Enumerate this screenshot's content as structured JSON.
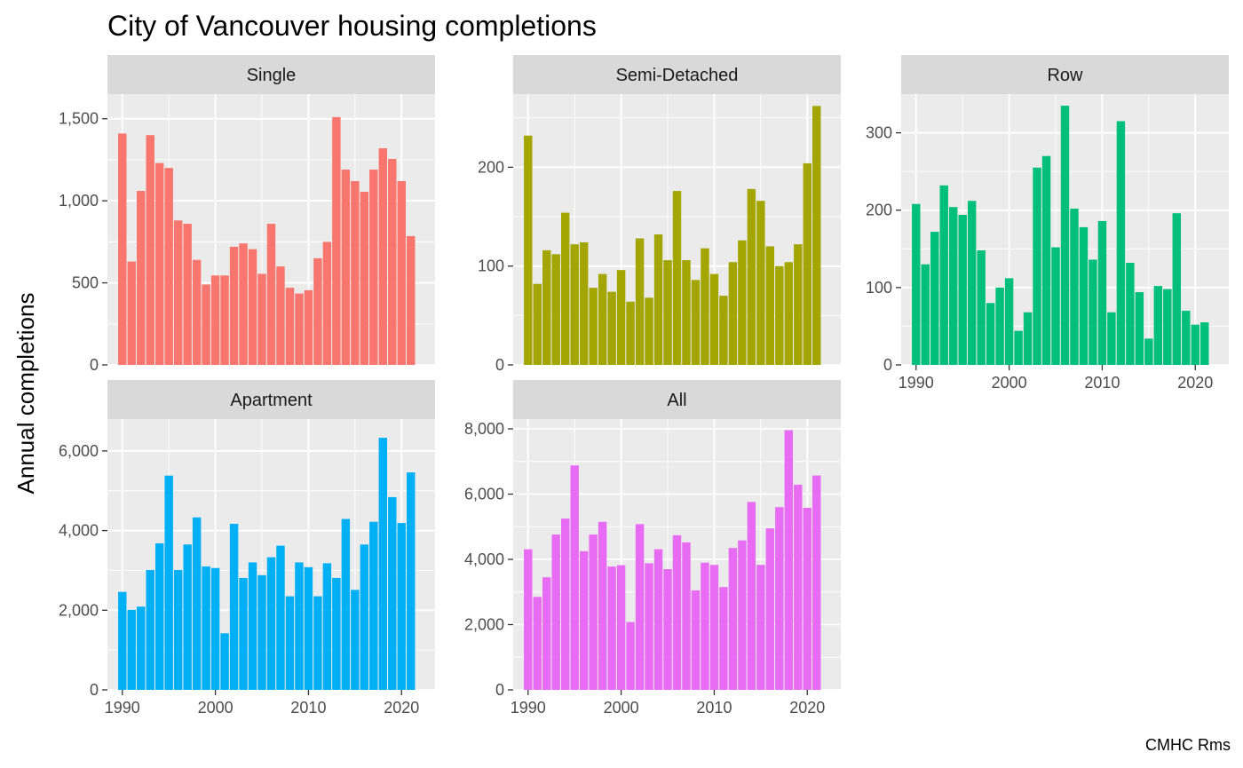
{
  "chart_data": {
    "type": "bar",
    "title": "City of Vancouver housing completions",
    "ylabel": "Annual completions",
    "caption": "CMHC Rms",
    "x_ticks": [
      1990,
      2000,
      2010,
      2020
    ],
    "years": [
      1990,
      1991,
      1992,
      1993,
      1994,
      1995,
      1996,
      1997,
      1998,
      1999,
      2000,
      2001,
      2002,
      2003,
      2004,
      2005,
      2006,
      2007,
      2008,
      2009,
      2010,
      2011,
      2012,
      2013,
      2014,
      2015,
      2016,
      2017,
      2018,
      2019,
      2020,
      2021
    ],
    "panels": [
      {
        "name": "Single",
        "color": "#F8766D",
        "ylim": [
          0,
          1650
        ],
        "y_ticks": [
          0,
          500,
          1000,
          1500
        ],
        "y_tick_labels": [
          "0",
          "500",
          "1,000",
          "1,500"
        ],
        "values": [
          1410,
          630,
          1060,
          1400,
          1230,
          1200,
          880,
          860,
          640,
          490,
          545,
          545,
          720,
          740,
          705,
          555,
          860,
          600,
          470,
          435,
          455,
          650,
          750,
          1510,
          1190,
          1120,
          1055,
          1190,
          1320,
          1255,
          1120,
          785
        ]
      },
      {
        "name": "Semi-Detached",
        "color": "#A3A500",
        "ylim": [
          0,
          274
        ],
        "y_ticks": [
          0,
          100,
          200
        ],
        "y_tick_labels": [
          "0",
          "100",
          "200"
        ],
        "values": [
          232,
          82,
          116,
          112,
          154,
          122,
          124,
          78,
          92,
          74,
          96,
          64,
          128,
          68,
          132,
          106,
          176,
          106,
          86,
          118,
          92,
          70,
          104,
          126,
          178,
          166,
          120,
          100,
          104,
          122,
          204,
          262
        ]
      },
      {
        "name": "Row",
        "color": "#00BF7D",
        "ylim": [
          0,
          350
        ],
        "y_ticks": [
          0,
          100,
          200,
          300
        ],
        "y_tick_labels": [
          "0",
          "100",
          "200",
          "300"
        ],
        "values": [
          208,
          130,
          172,
          232,
          204,
          194,
          212,
          148,
          80,
          100,
          112,
          44,
          68,
          255,
          270,
          152,
          335,
          202,
          178,
          136,
          186,
          68,
          315,
          132,
          94,
          34,
          102,
          98,
          196,
          70,
          52,
          55
        ]
      },
      {
        "name": "Apartment",
        "color": "#00B0F6",
        "ylim": [
          0,
          6800
        ],
        "y_ticks": [
          0,
          2000,
          4000,
          6000
        ],
        "y_tick_labels": [
          "0",
          "2,000",
          "4,000",
          "6,000"
        ],
        "values": [
          2460,
          2010,
          2090,
          3010,
          3680,
          5380,
          3010,
          3650,
          4330,
          3100,
          3060,
          1420,
          4170,
          2810,
          3200,
          2880,
          3330,
          3620,
          2350,
          3200,
          3080,
          2350,
          3180,
          2810,
          4290,
          2510,
          3650,
          4220,
          6330,
          4840,
          4190,
          5460
        ]
      },
      {
        "name": "All",
        "color": "#E76BF3",
        "ylim": [
          0,
          8300
        ],
        "y_ticks": [
          0,
          2000,
          4000,
          6000,
          8000
        ],
        "y_tick_labels": [
          "0",
          "2,000",
          "4,000",
          "6,000",
          "8,000"
        ],
        "values": [
          4310,
          2850,
          3450,
          4760,
          5250,
          6880,
          4250,
          4760,
          5150,
          3780,
          3820,
          2080,
          5080,
          3880,
          4310,
          3700,
          4740,
          4520,
          3050,
          3900,
          3830,
          3150,
          4350,
          4580,
          5760,
          3830,
          4950,
          5600,
          7960,
          6290,
          5580,
          6570
        ]
      }
    ]
  }
}
